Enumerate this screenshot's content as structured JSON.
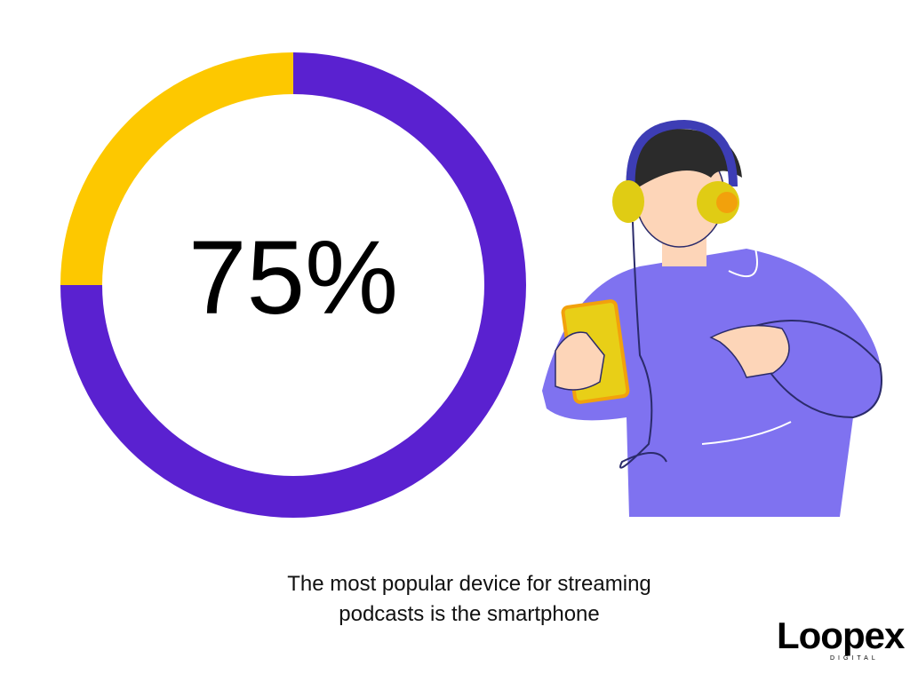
{
  "chart_data": {
    "type": "donut",
    "values": [
      75,
      25
    ],
    "value_labels": [
      "75%",
      null
    ],
    "colors": [
      "#5a21d0",
      "#fdc800"
    ],
    "caption": "The most popular device for streaming podcasts is the smartphone"
  },
  "brand": {
    "name": "Loopex",
    "tagline": "DIGITAL"
  }
}
